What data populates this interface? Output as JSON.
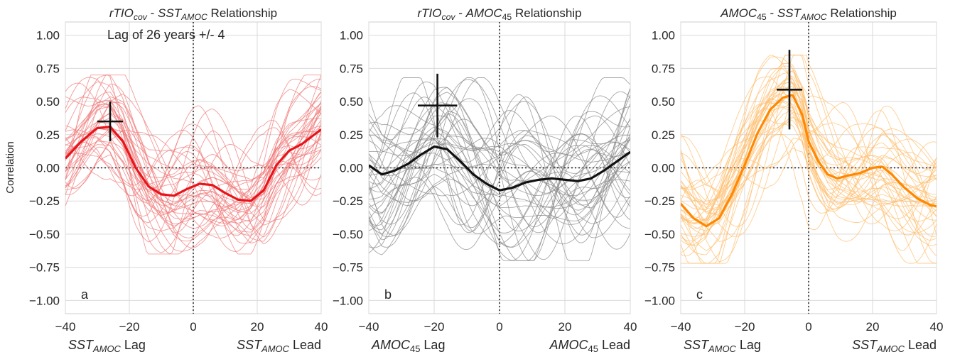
{
  "figure": {
    "ylabel": "Correlation",
    "grid": true
  },
  "chart_data": [
    {
      "type": "line",
      "panel_letter": "a",
      "title_parts": [
        {
          "text": "rTIO",
          "italic": true
        },
        {
          "text": "cov",
          "italic": true,
          "sub": true
        },
        {
          "text": " - "
        },
        {
          "text": "SST",
          "italic": true
        },
        {
          "text": "AMOC",
          "italic": true,
          "sub": true
        },
        {
          "text": " Relationship"
        }
      ],
      "annotation": "Lag of 26 years +/- 4",
      "xlabel_left": [
        {
          "text": "SST",
          "italic": true
        },
        {
          "text": "AMOC",
          "italic": true,
          "sub": true
        },
        {
          "text": " Lag"
        }
      ],
      "xlabel_right": [
        {
          "text": "SST",
          "italic": true
        },
        {
          "text": "AMOC",
          "italic": true,
          "sub": true
        },
        {
          "text": " Lead"
        }
      ],
      "xlim": [
        -40,
        40
      ],
      "ylim": [
        -1.1,
        1.1
      ],
      "xticks": [
        -40,
        -20,
        0,
        20,
        40
      ],
      "yticks": [
        1.0,
        0.75,
        0.5,
        0.25,
        0.0,
        -0.25,
        -0.5,
        -0.75,
        -1.0
      ],
      "color": "#e8141b",
      "ensemble_color": "#f07a7a",
      "mean": {
        "x": [
          -40,
          -35,
          -30,
          -26,
          -22,
          -18,
          -14,
          -10,
          -6,
          -2,
          2,
          6,
          10,
          14,
          18,
          22,
          26,
          30,
          34,
          40
        ],
        "y": [
          0.07,
          0.2,
          0.3,
          0.31,
          0.2,
          0.0,
          -0.14,
          -0.2,
          -0.21,
          -0.16,
          -0.12,
          -0.13,
          -0.19,
          -0.24,
          -0.25,
          -0.17,
          0.02,
          0.13,
          0.18,
          0.29
        ]
      },
      "peak": {
        "x": -26,
        "y": 0.35,
        "x_err": 4,
        "y_err": 0.15
      },
      "ensemble": {
        "count": 40,
        "base": [
          0.07,
          0.2,
          0.3,
          0.31,
          0.2,
          0.0,
          -0.14,
          -0.2,
          -0.21,
          -0.16,
          -0.12,
          -0.13,
          -0.19,
          -0.24,
          -0.25,
          -0.17,
          0.02,
          0.13,
          0.18,
          0.29
        ],
        "spread": 0.28,
        "ymin": -0.65,
        "ymax": 0.7
      }
    },
    {
      "type": "line",
      "panel_letter": "b",
      "title_parts": [
        {
          "text": "rTIO",
          "italic": true
        },
        {
          "text": "cov",
          "italic": true,
          "sub": true
        },
        {
          "text": " - "
        },
        {
          "text": "AMOC",
          "italic": true
        },
        {
          "text": "45",
          "sub": true
        },
        {
          "text": " Relationship"
        }
      ],
      "annotation": "",
      "xlabel_left": [
        {
          "text": "AMOC",
          "italic": true
        },
        {
          "text": "45",
          "sub": true
        },
        {
          "text": " Lag"
        }
      ],
      "xlabel_right": [
        {
          "text": "AMOC",
          "italic": true
        },
        {
          "text": "45",
          "sub": true
        },
        {
          "text": " Lead"
        }
      ],
      "xlim": [
        -40,
        40
      ],
      "ylim": [
        -1.1,
        1.1
      ],
      "xticks": [
        -40,
        -20,
        0,
        20,
        40
      ],
      "yticks": [
        1.0,
        0.75,
        0.5,
        0.25,
        0.0,
        -0.25,
        -0.5,
        -0.75,
        -1.0
      ],
      "color": "#111111",
      "ensemble_color": "#8a8a8a",
      "mean": {
        "x": [
          -40,
          -36,
          -32,
          -28,
          -24,
          -20,
          -16,
          -12,
          -8,
          -4,
          0,
          4,
          8,
          12,
          16,
          20,
          24,
          28,
          32,
          36,
          40
        ],
        "y": [
          0.02,
          -0.05,
          -0.02,
          0.03,
          0.1,
          0.16,
          0.14,
          0.05,
          -0.05,
          -0.12,
          -0.17,
          -0.15,
          -0.11,
          -0.09,
          -0.08,
          -0.09,
          -0.1,
          -0.08,
          -0.02,
          0.05,
          0.12
        ]
      },
      "peak": {
        "x": -19,
        "y": 0.47,
        "x_err": 6,
        "y_err": 0.24
      },
      "ensemble": {
        "count": 40,
        "base": [
          0.02,
          -0.05,
          -0.02,
          0.03,
          0.1,
          0.16,
          0.14,
          0.05,
          -0.05,
          -0.12,
          -0.17,
          -0.15,
          -0.11,
          -0.09,
          -0.08,
          -0.09,
          -0.1,
          -0.08,
          -0.02,
          0.05,
          0.12
        ],
        "spread": 0.38,
        "ymin": -0.7,
        "ymax": 0.68
      }
    },
    {
      "type": "line",
      "panel_letter": "c",
      "title_parts": [
        {
          "text": "AMOC",
          "italic": true
        },
        {
          "text": "45",
          "sub": true
        },
        {
          "text": " - "
        },
        {
          "text": "SST",
          "italic": true
        },
        {
          "text": "AMOC",
          "italic": true,
          "sub": true
        },
        {
          "text": " Relationship"
        }
      ],
      "annotation": "",
      "xlabel_left": [
        {
          "text": "SST",
          "italic": true
        },
        {
          "text": "AMOC",
          "italic": true,
          "sub": true
        },
        {
          "text": " Lag"
        }
      ],
      "xlabel_right": [
        {
          "text": "SST",
          "italic": true
        },
        {
          "text": "AMOC",
          "italic": true,
          "sub": true
        },
        {
          "text": " Lead"
        }
      ],
      "xlim": [
        -40,
        40
      ],
      "ylim": [
        -1.1,
        1.1
      ],
      "xticks": [
        -40,
        -20,
        0,
        20,
        40
      ],
      "yticks": [
        1.0,
        0.75,
        0.5,
        0.25,
        0.0,
        -0.25,
        -0.5,
        -0.75,
        -1.0
      ],
      "color": "#ff8800",
      "ensemble_color": "#ffbe6e",
      "mean": {
        "x": [
          -40,
          -36,
          -32,
          -28,
          -24,
          -20,
          -16,
          -12,
          -8,
          -5,
          -2,
          0,
          3,
          6,
          9,
          12,
          16,
          20,
          23,
          26,
          30,
          34,
          38,
          40
        ],
        "y": [
          -0.27,
          -0.38,
          -0.44,
          -0.38,
          -0.2,
          0.02,
          0.26,
          0.44,
          0.53,
          0.55,
          0.4,
          0.2,
          0.05,
          -0.05,
          -0.08,
          -0.06,
          -0.04,
          0.0,
          0.01,
          -0.05,
          -0.15,
          -0.23,
          -0.28,
          -0.29
        ]
      },
      "peak": {
        "x": -6,
        "y": 0.59,
        "x_err": 4,
        "y_err": 0.3
      },
      "ensemble": {
        "count": 40,
        "base": [
          -0.27,
          -0.38,
          -0.44,
          -0.38,
          -0.2,
          0.02,
          0.26,
          0.44,
          0.53,
          0.55,
          0.4,
          0.2,
          0.05,
          -0.05,
          -0.08,
          -0.06,
          -0.04,
          0.0,
          0.01,
          -0.05,
          -0.15,
          -0.23,
          -0.28,
          -0.29
        ],
        "spread": 0.3,
        "ymin": -0.72,
        "ymax": 0.85
      }
    }
  ]
}
